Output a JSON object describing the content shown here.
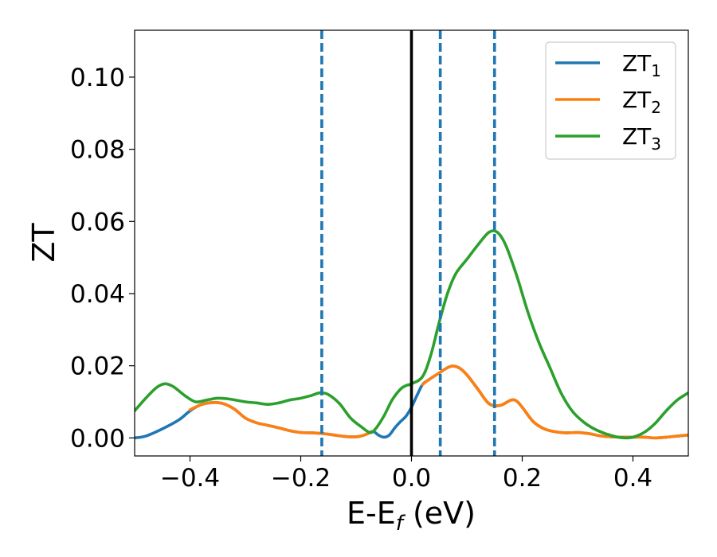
{
  "chart_data": {
    "type": "line",
    "title": "",
    "xlabel": "E-E",
    "xlabel_sub": "f",
    "xlabel_unit": " (eV)",
    "ylabel": "ZT",
    "xlim": [
      -0.5,
      0.5
    ],
    "ylim": [
      -0.005,
      0.113
    ],
    "xticks": [
      -0.4,
      -0.2,
      0.0,
      0.2,
      0.4
    ],
    "xtick_labels": [
      "−0.4",
      "−0.2",
      "0.0",
      "0.2",
      "0.4"
    ],
    "yticks": [
      0.0,
      0.02,
      0.04,
      0.06,
      0.08,
      0.1
    ],
    "ytick_labels": [
      "0.00",
      "0.02",
      "0.04",
      "0.06",
      "0.08",
      "0.10"
    ],
    "grid": false,
    "legend_position": "top-right",
    "vertical_solid_line": {
      "x": 0.0,
      "color": "#000000"
    },
    "vertical_dashed_lines": {
      "x": [
        -0.162,
        0.052,
        0.15
      ],
      "color": "#1f77b4"
    },
    "series": [
      {
        "name": "ZT",
        "sub": "1",
        "color": "#1f77b4",
        "points": [
          [
            -0.5,
            0.0
          ],
          [
            -0.48,
            0.0005
          ],
          [
            -0.45,
            0.0025
          ],
          [
            -0.42,
            0.005
          ],
          [
            -0.4,
            0.0075
          ],
          [
            -0.38,
            0.0092
          ],
          [
            -0.36,
            0.0098
          ],
          [
            -0.34,
            0.0095
          ],
          [
            -0.32,
            0.008
          ],
          [
            -0.3,
            0.0055
          ],
          [
            -0.28,
            0.0042
          ],
          [
            -0.26,
            0.0035
          ],
          [
            -0.24,
            0.0028
          ],
          [
            -0.22,
            0.002
          ],
          [
            -0.2,
            0.0015
          ],
          [
            -0.18,
            0.0014
          ],
          [
            -0.16,
            0.0012
          ],
          [
            -0.14,
            0.0008
          ],
          [
            -0.12,
            0.0004
          ],
          [
            -0.1,
            0.0003
          ],
          [
            -0.085,
            0.0008
          ],
          [
            -0.07,
            0.0018
          ],
          [
            -0.06,
            0.0008
          ],
          [
            -0.05,
            0.0002
          ],
          [
            -0.04,
            0.0008
          ],
          [
            -0.03,
            0.0028
          ],
          [
            -0.02,
            0.0045
          ],
          [
            -0.01,
            0.006
          ],
          [
            0.0,
            0.0085
          ],
          [
            0.01,
            0.0118
          ],
          [
            0.02,
            0.0148
          ],
          [
            0.03,
            0.016
          ],
          [
            0.05,
            0.018
          ],
          [
            0.07,
            0.0198
          ],
          [
            0.085,
            0.0195
          ],
          [
            0.1,
            0.0175
          ],
          [
            0.12,
            0.0135
          ],
          [
            0.14,
            0.0095
          ],
          [
            0.16,
            0.009
          ],
          [
            0.18,
            0.0105
          ],
          [
            0.19,
            0.0102
          ],
          [
            0.2,
            0.0085
          ],
          [
            0.22,
            0.0045
          ],
          [
            0.24,
            0.0025
          ],
          [
            0.26,
            0.0017
          ],
          [
            0.28,
            0.0014
          ],
          [
            0.3,
            0.0015
          ],
          [
            0.32,
            0.0012
          ],
          [
            0.34,
            0.0006
          ],
          [
            0.36,
            0.0003
          ],
          [
            0.38,
            0.0002
          ],
          [
            0.4,
            0.0002
          ],
          [
            0.42,
            0.0002
          ],
          [
            0.44,
            0.0
          ],
          [
            0.46,
            0.0002
          ],
          [
            0.48,
            0.0005
          ],
          [
            0.5,
            0.0008
          ]
        ]
      },
      {
        "name": "ZT",
        "sub": "2",
        "color": "#ff7f0e",
        "points": [
          [
            -0.4,
            0.0078
          ],
          [
            -0.38,
            0.0092
          ],
          [
            -0.36,
            0.0098
          ],
          [
            -0.34,
            0.0095
          ],
          [
            -0.32,
            0.008
          ],
          [
            -0.3,
            0.0055
          ],
          [
            -0.28,
            0.0042
          ],
          [
            -0.26,
            0.0035
          ],
          [
            -0.24,
            0.0028
          ],
          [
            -0.22,
            0.002
          ],
          [
            -0.2,
            0.0015
          ],
          [
            -0.18,
            0.0014
          ],
          [
            -0.16,
            0.0012
          ],
          [
            -0.14,
            0.0008
          ],
          [
            -0.12,
            0.0004
          ],
          [
            -0.1,
            0.0003
          ],
          [
            -0.085,
            0.0008
          ],
          [
            -0.07,
            0.0018
          ],
          [
            0.02,
            0.0148
          ],
          [
            0.03,
            0.016
          ],
          [
            0.05,
            0.018
          ],
          [
            0.07,
            0.0198
          ],
          [
            0.085,
            0.0195
          ],
          [
            0.1,
            0.0175
          ],
          [
            0.12,
            0.0135
          ],
          [
            0.14,
            0.0095
          ],
          [
            0.16,
            0.009
          ],
          [
            0.18,
            0.0105
          ],
          [
            0.19,
            0.0102
          ],
          [
            0.2,
            0.0085
          ],
          [
            0.22,
            0.0045
          ],
          [
            0.24,
            0.0025
          ],
          [
            0.26,
            0.0017
          ],
          [
            0.28,
            0.0014
          ],
          [
            0.3,
            0.0015
          ],
          [
            0.32,
            0.0012
          ],
          [
            0.34,
            0.0006
          ],
          [
            0.36,
            0.0003
          ],
          [
            0.38,
            0.0002
          ],
          [
            0.4,
            0.0002
          ],
          [
            0.42,
            0.0002
          ],
          [
            0.44,
            0.0
          ],
          [
            0.46,
            0.0002
          ],
          [
            0.48,
            0.0005
          ],
          [
            0.5,
            0.0008
          ]
        ]
      },
      {
        "name": "ZT",
        "sub": "3",
        "color": "#2ca02c",
        "points": [
          [
            -0.5,
            0.0075
          ],
          [
            -0.48,
            0.011
          ],
          [
            -0.46,
            0.014
          ],
          [
            -0.445,
            0.015
          ],
          [
            -0.43,
            0.0142
          ],
          [
            -0.41,
            0.0118
          ],
          [
            -0.39,
            0.01
          ],
          [
            -0.37,
            0.0105
          ],
          [
            -0.35,
            0.011
          ],
          [
            -0.33,
            0.0108
          ],
          [
            -0.3,
            0.01
          ],
          [
            -0.28,
            0.0097
          ],
          [
            -0.26,
            0.0093
          ],
          [
            -0.24,
            0.0097
          ],
          [
            -0.22,
            0.0105
          ],
          [
            -0.2,
            0.011
          ],
          [
            -0.18,
            0.0118
          ],
          [
            -0.165,
            0.0125
          ],
          [
            -0.15,
            0.012
          ],
          [
            -0.13,
            0.0095
          ],
          [
            -0.11,
            0.0055
          ],
          [
            -0.09,
            0.003
          ],
          [
            -0.075,
            0.0015
          ],
          [
            -0.065,
            0.0025
          ],
          [
            -0.05,
            0.006
          ],
          [
            -0.035,
            0.0105
          ],
          [
            -0.02,
            0.0135
          ],
          [
            -0.01,
            0.0145
          ],
          [
            0.0,
            0.015
          ],
          [
            0.02,
            0.017
          ],
          [
            0.035,
            0.023
          ],
          [
            0.05,
            0.032
          ],
          [
            0.065,
            0.04
          ],
          [
            0.08,
            0.0455
          ],
          [
            0.1,
            0.0495
          ],
          [
            0.12,
            0.0535
          ],
          [
            0.14,
            0.057
          ],
          [
            0.155,
            0.057
          ],
          [
            0.17,
            0.0535
          ],
          [
            0.19,
            0.045
          ],
          [
            0.21,
            0.035
          ],
          [
            0.23,
            0.0265
          ],
          [
            0.25,
            0.0195
          ],
          [
            0.27,
            0.0125
          ],
          [
            0.29,
            0.0075
          ],
          [
            0.31,
            0.0045
          ],
          [
            0.33,
            0.0025
          ],
          [
            0.35,
            0.0012
          ],
          [
            0.37,
            0.0003
          ],
          [
            0.385,
            0.0
          ],
          [
            0.4,
            0.0002
          ],
          [
            0.42,
            0.0015
          ],
          [
            0.44,
            0.004
          ],
          [
            0.46,
            0.0075
          ],
          [
            0.48,
            0.0105
          ],
          [
            0.5,
            0.0125
          ]
        ]
      }
    ]
  }
}
